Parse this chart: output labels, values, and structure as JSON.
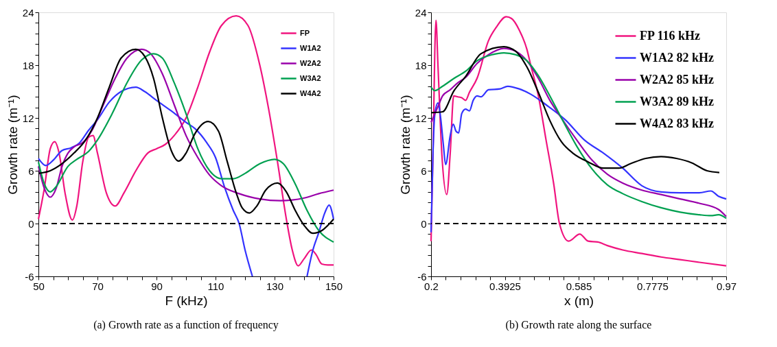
{
  "chart_data": [
    {
      "type": "line",
      "xlabel": "F (kHz)",
      "ylabel": "Growth rate (m⁻¹)",
      "legend": "top right",
      "grid": false,
      "annotations": [
        "(a)  Growth rate as a function of frequency"
      ],
      "xlim": [
        50,
        150
      ],
      "xticks": [
        50,
        {
          "value": 55,
          "label": null
        },
        {
          "value": 60,
          "label": null
        },
        {
          "value": 65,
          "label": null
        },
        70,
        {
          "value": 75,
          "label": null
        },
        {
          "value": 80,
          "label": null
        },
        {
          "value": 85,
          "label": null
        },
        90,
        {
          "value": 95,
          "label": null
        },
        {
          "value": 100,
          "label": null
        },
        {
          "value": 105,
          "label": null
        },
        110,
        {
          "value": 115,
          "label": null
        },
        {
          "value": 120,
          "label": null
        },
        {
          "value": 125,
          "label": null
        },
        130,
        {
          "value": 135,
          "label": null
        },
        {
          "value": 140,
          "label": null
        },
        {
          "value": 145,
          "label": null
        },
        150
      ],
      "ylim": [
        -6,
        24
      ],
      "yticks": [
        -6,
        {
          "value": -4.8,
          "label": null
        },
        {
          "value": -3.6,
          "label": null
        },
        {
          "value": -2.4,
          "label": null
        },
        {
          "value": -1.2,
          "label": null
        },
        0,
        {
          "value": 1.2,
          "label": null
        },
        {
          "value": 2.4,
          "label": null
        },
        {
          "value": 3.6,
          "label": null
        },
        {
          "value": 4.8,
          "label": null
        },
        6,
        {
          "value": 7.2,
          "label": null
        },
        {
          "value": 8.4,
          "label": null
        },
        {
          "value": 9.6,
          "label": null
        },
        {
          "value": 10.8,
          "label": null
        },
        12,
        {
          "value": 13.2,
          "label": null
        },
        {
          "value": 14.4,
          "label": null
        },
        {
          "value": 15.6,
          "label": null
        },
        {
          "value": 16.8,
          "label": null
        },
        18,
        {
          "value": 19.2,
          "label": null
        },
        {
          "value": 20.4,
          "label": null
        },
        {
          "value": 21.6,
          "label": null
        },
        {
          "value": 22.8,
          "label": null
        },
        24
      ],
      "ref_lines": [
        {
          "axis": "y",
          "value": 0,
          "color": "#000000",
          "line_style": "dashed"
        }
      ],
      "series": [
        {
          "name": "FP",
          "color": "#f0147f",
          "x": [
            50,
            52,
            54,
            55.5,
            57,
            59,
            61.5,
            63,
            65,
            67,
            68.5,
            70,
            73,
            76,
            79,
            83,
            87,
            90,
            93,
            96,
            100,
            104,
            108,
            112,
            117,
            121,
            125,
            128,
            131,
            134,
            136,
            138,
            140,
            142.5,
            144,
            146,
            148,
            150
          ],
          "values": [
            0.5,
            4,
            8.5,
            9.3,
            8,
            3.5,
            0.4,
            2,
            7,
            9.8,
            10,
            8,
            3.5,
            2,
            3.5,
            6,
            8,
            8.5,
            9,
            10,
            12,
            15.5,
            19.5,
            22.5,
            23.6,
            22.5,
            18,
            13,
            7,
            0.5,
            -3,
            -4.8,
            -4,
            -3,
            -3.5,
            -4.6,
            -4.7,
            -4.7
          ]
        },
        {
          "name": "W1A2",
          "color": "#3333ff",
          "x": [
            50,
            52.5,
            55,
            58,
            61,
            64,
            67,
            70,
            74,
            78,
            83,
            86,
            90,
            95,
            100,
            103,
            107,
            110,
            113,
            116,
            118,
            120,
            122.5,
            131,
            141,
            143,
            145,
            147,
            148.5,
            150
          ],
          "values": [
            7.4,
            6.6,
            7.2,
            8.3,
            8.6,
            9.2,
            10.6,
            11.8,
            13.8,
            15,
            15.5,
            15,
            14,
            12.8,
            11.5,
            10.8,
            9.2,
            7.5,
            4.2,
            1.5,
            0,
            -3,
            -6,
            null,
            -6,
            -3,
            -1,
            1.2,
            2.1,
            0.5
          ]
        },
        {
          "name": "W2A2",
          "color": "#9900aa",
          "x": [
            50,
            52,
            54,
            56,
            58,
            60,
            62,
            65,
            68,
            72,
            76,
            80,
            85,
            88,
            92,
            96,
            100,
            104,
            108,
            112,
            118,
            125,
            132,
            140,
            145,
            150
          ],
          "values": [
            6.5,
            4,
            3,
            4,
            6.5,
            8,
            8.7,
            9.2,
            10.5,
            13.5,
            16.5,
            18.8,
            19.8,
            19.3,
            17,
            13.5,
            10,
            7.5,
            5.5,
            4.3,
            3.4,
            2.8,
            2.6,
            2.9,
            3.4,
            3.8
          ]
        },
        {
          "name": "W3A2",
          "color": "#00a050",
          "x": [
            50,
            52,
            54,
            56,
            60,
            63,
            67,
            70,
            75,
            80,
            85,
            89,
            92,
            96,
            100,
            104,
            108,
            112,
            116,
            120,
            125,
            130,
            133,
            137,
            141,
            145,
            150
          ],
          "values": [
            7,
            4.5,
            3.6,
            4.2,
            6.5,
            7.3,
            8.2,
            9.5,
            12.5,
            16,
            18.6,
            19.3,
            18.8,
            16,
            12.5,
            8.5,
            6,
            5.1,
            5.1,
            5.7,
            6.8,
            7.3,
            6.8,
            4.5,
            1.5,
            -0.8,
            -2.1
          ]
        },
        {
          "name": "W4A2",
          "color": "#000000",
          "x": [
            50,
            54,
            58,
            62,
            66,
            70,
            74,
            78,
            83,
            86,
            89,
            92,
            95,
            97.5,
            100,
            103,
            107.5,
            111,
            114,
            117,
            119,
            121.5,
            124,
            127,
            131,
            134,
            137,
            140,
            143,
            146,
            150
          ],
          "values": [
            5.7,
            6,
            6.8,
            8,
            9.5,
            12,
            15.5,
            18.8,
            19.8,
            19,
            16.5,
            12,
            8.3,
            7.1,
            8,
            10.2,
            11.6,
            10.5,
            7,
            3.5,
            1.8,
            1.2,
            2,
            3.8,
            4.6,
            3.6,
            1.5,
            -0.2,
            -1.1,
            -0.8,
            0.5
          ]
        }
      ]
    },
    {
      "type": "line",
      "xlabel": "x (m)",
      "ylabel": "Growth rate (m⁻¹)",
      "legend": "top right",
      "grid": false,
      "annotations": [
        "(b)  Growth rate along the surface"
      ],
      "xlim": [
        0.2,
        0.97
      ],
      "xticks": [
        0.2,
        {
          "value": 0.2385,
          "label": null
        },
        {
          "value": 0.277,
          "label": null
        },
        {
          "value": 0.3155,
          "label": null
        },
        {
          "value": 0.354,
          "label": null
        },
        0.3925,
        {
          "value": 0.431,
          "label": null
        },
        {
          "value": 0.4695,
          "label": null
        },
        {
          "value": 0.508,
          "label": null
        },
        {
          "value": 0.5465,
          "label": null
        },
        0.585,
        {
          "value": 0.6235,
          "label": null
        },
        {
          "value": 0.662,
          "label": null
        },
        {
          "value": 0.7005,
          "label": null
        },
        {
          "value": 0.739,
          "label": null
        },
        0.7775,
        {
          "value": 0.816,
          "label": null
        },
        {
          "value": 0.8545,
          "label": null
        },
        {
          "value": 0.893,
          "label": null
        },
        {
          "value": 0.9315,
          "label": null
        },
        0.97
      ],
      "ylim": [
        -6,
        24
      ],
      "yticks": [
        -6,
        {
          "value": -4.8,
          "label": null
        },
        {
          "value": -3.6,
          "label": null
        },
        {
          "value": -2.4,
          "label": null
        },
        {
          "value": -1.2,
          "label": null
        },
        0,
        {
          "value": 1.2,
          "label": null
        },
        {
          "value": 2.4,
          "label": null
        },
        {
          "value": 3.6,
          "label": null
        },
        {
          "value": 4.8,
          "label": null
        },
        6,
        {
          "value": 7.2,
          "label": null
        },
        {
          "value": 8.4,
          "label": null
        },
        {
          "value": 9.6,
          "label": null
        },
        {
          "value": 10.8,
          "label": null
        },
        12,
        {
          "value": 13.2,
          "label": null
        },
        {
          "value": 14.4,
          "label": null
        },
        {
          "value": 15.6,
          "label": null
        },
        {
          "value": 16.8,
          "label": null
        },
        18,
        {
          "value": 19.2,
          "label": null
        },
        {
          "value": 20.4,
          "label": null
        },
        {
          "value": 21.6,
          "label": null
        },
        {
          "value": 22.8,
          "label": null
        },
        24
      ],
      "ref_lines": [
        {
          "axis": "y",
          "value": 0,
          "color": "#000000",
          "line_style": "dashed"
        }
      ],
      "series": [
        {
          "name": "FP 116 kHz",
          "color": "#f0147f",
          "x": [
            0.2,
            0.205,
            0.2128,
            0.218,
            0.228,
            0.241,
            0.25,
            0.259,
            0.27,
            0.28,
            0.29,
            0.3,
            0.32,
            0.35,
            0.37,
            0.396,
            0.41,
            0.43,
            0.45,
            0.46,
            0.48,
            0.5,
            0.52,
            0.535,
            0.559,
            0.588,
            0.61,
            0.635,
            0.66,
            0.7,
            0.75,
            0.8,
            0.85,
            0.9,
            0.97
          ],
          "values": [
            -2,
            8,
            23.1,
            18,
            8,
            3.3,
            8,
            14.5,
            14.4,
            14.3,
            14,
            14.9,
            16.5,
            20.8,
            22.3,
            23.5,
            23.3,
            22,
            19.8,
            18,
            14.5,
            9.5,
            4.5,
            0,
            -2,
            -1.2,
            -2,
            -2.1,
            -2.5,
            -3,
            -3.4,
            -3.8,
            -4.1,
            -4.4,
            -4.8
          ]
        },
        {
          "name": "W1A2 82 kHz",
          "color": "#3333ff",
          "x": [
            0.2,
            0.205,
            0.21,
            0.218,
            0.225,
            0.232,
            0.238,
            0.25,
            0.258,
            0.265,
            0.272,
            0.28,
            0.29,
            0.3,
            0.31,
            0.32,
            0.33,
            0.35,
            0.38,
            0.4,
            0.43,
            0.46,
            0.5,
            0.55,
            0.6,
            0.65,
            0.7,
            0.75,
            0.8,
            0.85,
            0.9,
            0.93,
            0.95,
            0.97
          ],
          "values": [
            -1,
            8,
            12.5,
            13.7,
            12,
            9,
            6.7,
            10,
            11.3,
            10.5,
            10.3,
            12.5,
            13,
            12.8,
            14,
            14.5,
            14.4,
            15.2,
            15.3,
            15.6,
            15.3,
            14.7,
            13.5,
            11.8,
            9.5,
            8,
            6.3,
            4.3,
            3.6,
            3.5,
            3.5,
            3.7,
            3.1,
            2.8
          ]
        },
        {
          "name": "W2A2 85 kHz",
          "color": "#9900aa",
          "x": [
            0.2,
            0.21,
            0.22,
            0.23,
            0.25,
            0.27,
            0.29,
            0.32,
            0.35,
            0.39,
            0.42,
            0.45,
            0.48,
            0.51,
            0.54,
            0.58,
            0.62,
            0.66,
            0.7,
            0.75,
            0.8,
            0.85,
            0.9,
            0.95,
            0.97
          ],
          "values": [
            11.5,
            12.5,
            13.5,
            14.5,
            15.2,
            16,
            16.6,
            18.2,
            19.2,
            19.9,
            19.6,
            18.5,
            16.5,
            14,
            12,
            9.5,
            7.2,
            5.6,
            4.6,
            3.8,
            3.3,
            2.8,
            2.3,
            1.6,
            0.8
          ]
        },
        {
          "name": "W3A2 89 kHz",
          "color": "#00a050",
          "x": [
            0.2,
            0.21,
            0.23,
            0.26,
            0.29,
            0.32,
            0.36,
            0.39,
            0.42,
            0.45,
            0.48,
            0.51,
            0.54,
            0.58,
            0.62,
            0.66,
            0.7,
            0.75,
            0.8,
            0.85,
            0.9,
            0.93,
            0.95,
            0.97
          ],
          "values": [
            15.5,
            15.1,
            15.6,
            16.5,
            17.3,
            18.5,
            19.2,
            19.4,
            19.2,
            18.5,
            16.8,
            14.5,
            12,
            8.8,
            6.2,
            4.4,
            3.4,
            2.5,
            1.8,
            1.3,
            1,
            0.9,
            1,
            0.6
          ]
        },
        {
          "name": "W4A2 83 kHz",
          "color": "#000000",
          "x": [
            0.2,
            0.23,
            0.26,
            0.29,
            0.33,
            0.39,
            0.42,
            0.45,
            0.48,
            0.51,
            0.54,
            0.57,
            0.61,
            0.65,
            0.69,
            0.72,
            0.76,
            0.8,
            0.84,
            0.88,
            0.92,
            0.952
          ],
          "values": [
            12.6,
            12.7,
            15.1,
            16.7,
            19.3,
            20.1,
            19.6,
            17.8,
            14.9,
            11.7,
            9.3,
            8,
            7,
            6.3,
            6.3,
            6.8,
            7.4,
            7.6,
            7.4,
            6.9,
            6,
            5.8
          ]
        }
      ]
    }
  ]
}
